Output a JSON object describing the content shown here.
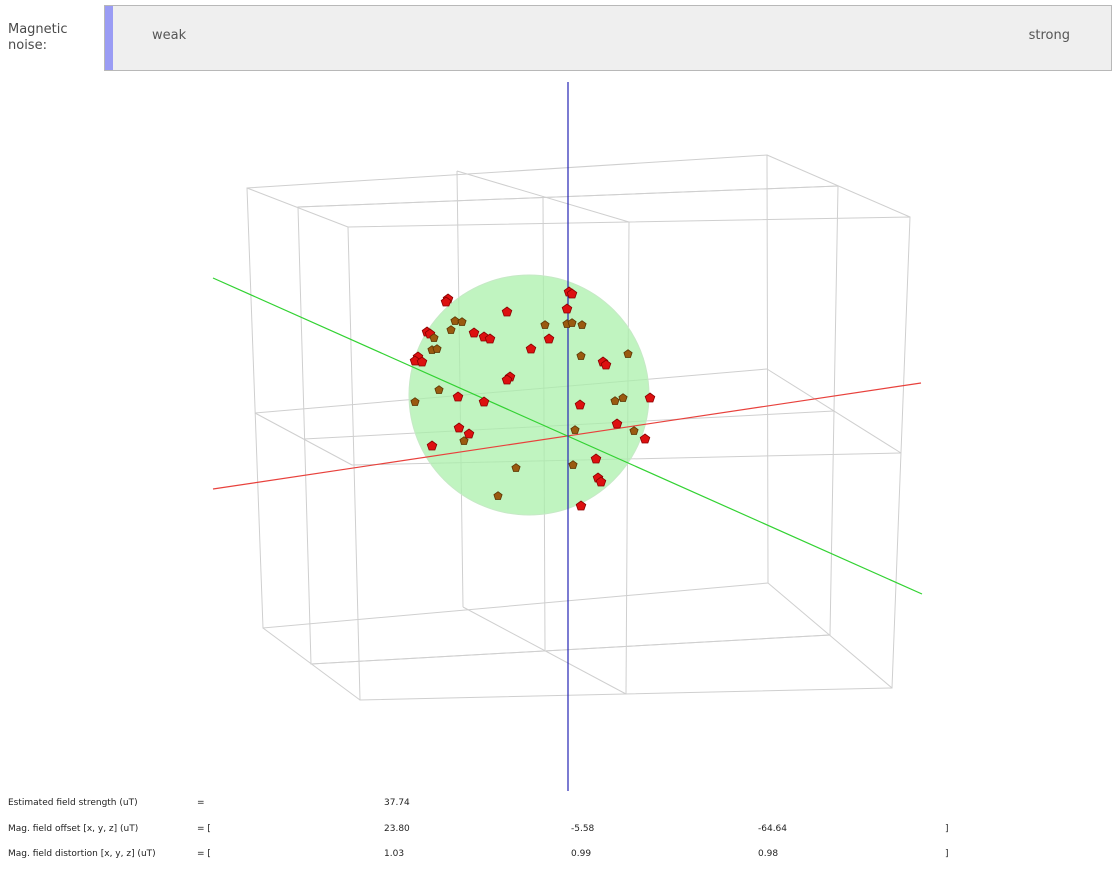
{
  "noise": {
    "label": "Magnetic noise:",
    "weak_label": "weak",
    "strong_label": "strong",
    "level": 0.0
  },
  "visualization": {
    "colors": {
      "x_axis": "#e8413c",
      "y_axis": "#32d232",
      "z_axis": "#2424b4",
      "sphere_fill": "#a8f0a8",
      "sample_marker": "#dd1010",
      "sample_marker_far": "#9a5a10",
      "grid_lines": "#cccccc"
    },
    "sample_marker_shape": "pentagon"
  },
  "readouts": {
    "field_strength": {
      "label": "Estimated field strength (uT)",
      "eq": "=",
      "value": "37.74"
    },
    "offset": {
      "label": "Mag. field offset [x, y, z] (uT)",
      "eq": "= [",
      "x": "23.80",
      "y": "-5.58",
      "z": "-64.64",
      "close": "]"
    },
    "distortion": {
      "label": "Mag. field distortion [x, y, z] (uT)",
      "eq": "= [",
      "x": "1.03",
      "y": "0.99",
      "z": "0.98",
      "close": "]"
    }
  }
}
